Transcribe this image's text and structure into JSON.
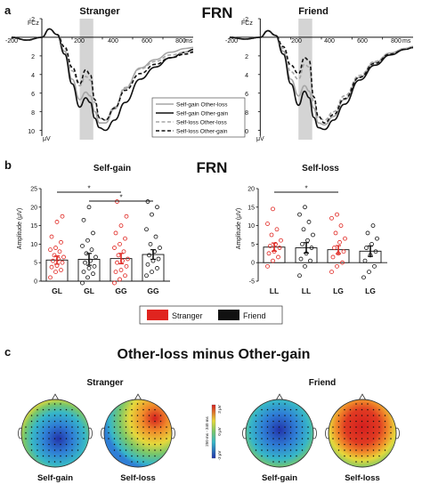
{
  "panels": {
    "a": "a",
    "b": "b",
    "c": "c"
  },
  "headers": {
    "frn_top": "FRN",
    "frn_mid": "FRN",
    "topo_title": "Other-loss minus Other-gain"
  },
  "erp_plots": [
    {
      "title": "Stranger",
      "electrode": "FCz",
      "unit": "μV",
      "ms_label": "ms",
      "x_ticks": [
        "-200",
        "200",
        "400",
        "600",
        "800"
      ],
      "y_ticks": [
        "-2",
        "2",
        "4",
        "6",
        "8",
        "10"
      ]
    },
    {
      "title": "Friend",
      "electrode": "FCz",
      "unit": "μV",
      "ms_label": "ms",
      "x_ticks": [
        "-200",
        "200",
        "400",
        "600",
        "800"
      ],
      "y_ticks": [
        "-2",
        "2",
        "4",
        "6",
        "8",
        "10"
      ]
    }
  ],
  "legend": {
    "items": [
      {
        "label": "Self-gain Other-loss",
        "color": "#a6a6a6",
        "dash": "solid"
      },
      {
        "label": "Self-gain Other-gain",
        "color": "#111111",
        "dash": "solid"
      },
      {
        "label": "Self-loss Other-loss",
        "color": "#a6a6a6",
        "dash": "dashed"
      },
      {
        "label": "Self-loss Other-gain",
        "color": "#111111",
        "dash": "dashed"
      }
    ]
  },
  "group_legend": {
    "items": [
      {
        "label": "Stranger",
        "color": "#e0241f"
      },
      {
        "label": "Friend",
        "color": "#111111"
      }
    ]
  },
  "sig_marker": "*",
  "topo": {
    "group_labels": [
      "Stranger",
      "Friend"
    ],
    "maps": [
      "Self-gain",
      "Self-loss",
      "Self-gain",
      "Self-loss"
    ],
    "scale_labels": [
      "3 μV",
      "0 μV",
      "-3 μV",
      "250 ms - 340 ms"
    ]
  },
  "chart_data": [
    {
      "type": "line",
      "title": "Stranger",
      "xlabel": "ms",
      "ylabel": "μV",
      "xlim": [
        -200,
        1000
      ],
      "ylim": [
        -2,
        11
      ],
      "y_inverted": true,
      "highlight_window": [
        250,
        340
      ],
      "series": [
        {
          "name": "Self-gain Other-loss",
          "x": [
            -200,
            -100,
            0,
            50,
            100,
            150,
            200,
            250,
            290,
            320,
            350,
            380,
            420,
            480,
            550,
            650,
            750,
            850,
            950,
            1000
          ],
          "values": [
            0,
            0.3,
            0,
            -0.9,
            -0.3,
            1.5,
            4.5,
            6.7,
            5.9,
            6.3,
            8.0,
            9.2,
            9.2,
            7.7,
            5.5,
            3.3,
            2.4,
            1.6,
            1.2,
            1.1
          ]
        },
        {
          "name": "Self-gain Other-gain",
          "x": [
            -200,
            -100,
            0,
            50,
            100,
            150,
            200,
            250,
            290,
            320,
            350,
            380,
            420,
            480,
            550,
            650,
            750,
            850,
            950,
            1000
          ],
          "values": [
            0,
            0.3,
            0,
            -0.9,
            -0.3,
            1.8,
            5.0,
            7.5,
            6.5,
            7.0,
            8.7,
            9.7,
            10.0,
            8.9,
            7.0,
            4.5,
            3.2,
            2.2,
            1.6,
            1.3
          ]
        },
        {
          "name": "Self-loss Other-loss",
          "x": [
            -200,
            -100,
            0,
            50,
            100,
            150,
            200,
            250,
            290,
            320,
            350,
            380,
            420,
            480,
            550,
            650,
            750,
            850,
            950,
            1000
          ],
          "values": [
            0,
            0.3,
            0,
            -0.9,
            -0.3,
            1.2,
            3.6,
            5.2,
            4.2,
            4.6,
            7.0,
            8.7,
            8.9,
            7.5,
            5.4,
            3.4,
            2.6,
            1.9,
            1.6,
            1.5
          ]
        },
        {
          "name": "Self-loss Other-gain",
          "x": [
            -200,
            -100,
            0,
            50,
            100,
            150,
            200,
            250,
            290,
            320,
            350,
            380,
            420,
            480,
            550,
            650,
            750,
            850,
            950,
            1000
          ],
          "values": [
            0,
            0.3,
            0,
            -0.9,
            -0.3,
            1.0,
            3.2,
            5.0,
            3.5,
            4.0,
            6.7,
            8.6,
            8.9,
            7.6,
            5.7,
            3.9,
            2.9,
            2.2,
            1.8,
            1.6
          ]
        }
      ]
    },
    {
      "type": "line",
      "title": "Friend",
      "xlabel": "ms",
      "ylabel": "μV",
      "xlim": [
        -200,
        1000
      ],
      "ylim": [
        -2,
        11
      ],
      "y_inverted": true,
      "highlight_window": [
        250,
        340
      ],
      "series": [
        {
          "name": "Self-gain Other-loss",
          "x": [
            -200,
            -100,
            0,
            50,
            100,
            150,
            200,
            250,
            290,
            320,
            350,
            380,
            420,
            480,
            550,
            650,
            750,
            850,
            950,
            1000
          ],
          "values": [
            0,
            0.2,
            0,
            -0.7,
            -0.2,
            1.5,
            4.5,
            6.3,
            5.2,
            5.8,
            7.6,
            9.2,
            9.4,
            8.5,
            6.7,
            4.3,
            2.7,
            1.7,
            1.2,
            1.0
          ]
        },
        {
          "name": "Self-gain Other-gain",
          "x": [
            -200,
            -100,
            0,
            50,
            100,
            150,
            200,
            250,
            290,
            320,
            350,
            380,
            420,
            480,
            550,
            650,
            750,
            850,
            950,
            1000
          ],
          "values": [
            0,
            0.2,
            0,
            -0.7,
            -0.2,
            1.8,
            5.0,
            7.3,
            5.8,
            6.5,
            8.6,
            9.7,
            9.9,
            8.9,
            7.2,
            4.6,
            3.0,
            1.9,
            1.3,
            1.1
          ]
        },
        {
          "name": "Self-loss Other-loss",
          "x": [
            -200,
            -100,
            0,
            50,
            100,
            150,
            200,
            250,
            290,
            320,
            350,
            380,
            420,
            480,
            550,
            650,
            750,
            850,
            950,
            1000
          ],
          "values": [
            0,
            0.2,
            0,
            -0.7,
            -0.2,
            1.2,
            3.7,
            4.5,
            2.9,
            3.2,
            6.9,
            8.6,
            8.9,
            8.0,
            6.3,
            4.1,
            2.6,
            1.7,
            1.2,
            1.0
          ]
        },
        {
          "name": "Self-loss Other-gain",
          "x": [
            -200,
            -100,
            0,
            50,
            100,
            150,
            200,
            250,
            290,
            320,
            350,
            380,
            420,
            480,
            550,
            650,
            750,
            850,
            950,
            1000
          ],
          "values": [
            0,
            0.2,
            0,
            -0.7,
            -0.2,
            1.0,
            3.0,
            3.9,
            2.2,
            2.5,
            6.4,
            8.5,
            9.2,
            8.3,
            6.6,
            4.3,
            2.8,
            1.8,
            1.3,
            1.1
          ]
        }
      ]
    },
    {
      "type": "bar",
      "title": "Self-gain",
      "ylabel": "Amplitude (μV)",
      "ylim": [
        0,
        25
      ],
      "y_ticks": [
        0,
        5,
        10,
        15,
        20,
        25
      ],
      "categories": [
        "GL",
        "GL",
        "GG",
        "GG"
      ],
      "series": [
        {
          "name": "",
          "values": [
            5.7,
            5.9,
            6.1,
            7.2
          ]
        }
      ],
      "error": [
        1.1,
        1.6,
        1.4,
        1.3
      ],
      "bar_groups": [
        "Stranger",
        "Friend",
        "Stranger",
        "Friend"
      ],
      "individual_points": [
        [
          1.0,
          2.5,
          3.0,
          3.8,
          4.2,
          5.0,
          5.5,
          6.0,
          6.5,
          7.0,
          8.0,
          8.5,
          9.0,
          10.5,
          12.0,
          16.0,
          17.5
        ],
        [
          -0.5,
          1.0,
          2.0,
          2.5,
          3.5,
          4.0,
          5.0,
          5.5,
          6.5,
          7.5,
          8.5,
          9.5,
          11.0,
          13.0,
          16.5,
          20.0
        ],
        [
          -0.5,
          0.5,
          1.5,
          2.5,
          3.0,
          4.0,
          5.0,
          5.5,
          6.0,
          7.0,
          8.0,
          9.0,
          10.0,
          11.5,
          13.0,
          15.0,
          17.5,
          21.5
        ],
        [
          1.5,
          2.5,
          3.5,
          4.5,
          5.5,
          6.0,
          7.0,
          8.0,
          9.0,
          10.0,
          12.0,
          14.0,
          18.0,
          20.0,
          21.5
        ]
      ],
      "significance": [
        {
          "from": 0,
          "to": 2,
          "label": "*"
        },
        {
          "from": 1,
          "to": 3,
          "label": "*"
        }
      ]
    },
    {
      "type": "bar",
      "title": "Self-loss",
      "ylabel": "Amplitude (μV)",
      "ylim": [
        -5,
        20
      ],
      "y_ticks": [
        -5,
        0,
        5,
        10,
        15,
        20
      ],
      "categories": [
        "LL",
        "LL",
        "LG",
        "LG"
      ],
      "series": [
        {
          "name": "",
          "values": [
            4.2,
            4.0,
            3.5,
            3.1
          ]
        }
      ],
      "error": [
        1.1,
        1.4,
        1.1,
        1.4
      ],
      "bar_groups": [
        "Stranger",
        "Friend",
        "Stranger",
        "Friend"
      ],
      "individual_points": [
        [
          -1.0,
          0.5,
          1.5,
          2.5,
          3.0,
          4.0,
          4.5,
          5.0,
          6.0,
          7.5,
          9.0,
          10.5,
          14.5
        ],
        [
          -3.5,
          -1.0,
          0.5,
          1.0,
          2.5,
          4.0,
          5.0,
          6.0,
          7.5,
          9.0,
          11.0,
          13.0,
          15.0
        ],
        [
          -2.5,
          -1.0,
          0.0,
          1.5,
          2.5,
          3.0,
          4.0,
          5.5,
          6.5,
          8.0,
          10.0,
          12.0,
          13.0
        ],
        [
          -4.0,
          -2.5,
          -1.0,
          0.5,
          2.0,
          3.0,
          4.0,
          5.0,
          6.5,
          8.0,
          10.0
        ]
      ],
      "significance": [
        {
          "from": 0,
          "to": 2,
          "label": "*"
        }
      ]
    },
    {
      "type": "heatmap",
      "title": "Other-loss minus Other-gain",
      "colormap": [
        "#2233aa",
        "#2f7fd6",
        "#37b7c8",
        "#79c76a",
        "#e6d83b",
        "#f08a2a",
        "#d41f1f"
      ],
      "range": [
        -3,
        3
      ],
      "unit": "μV",
      "time_window_ms": [
        250,
        340
      ],
      "maps": [
        {
          "group": "Stranger",
          "condition": "Self-gain",
          "dominant": "negative",
          "center_value": -2.3
        },
        {
          "group": "Stranger",
          "condition": "Self-loss",
          "dominant": "mixed",
          "center_value": 0.2
        },
        {
          "group": "Friend",
          "condition": "Self-gain",
          "dominant": "negative",
          "center_value": -2.6
        },
        {
          "group": "Friend",
          "condition": "Self-loss",
          "dominant": "positive",
          "center_value": 2.7
        }
      ]
    }
  ]
}
